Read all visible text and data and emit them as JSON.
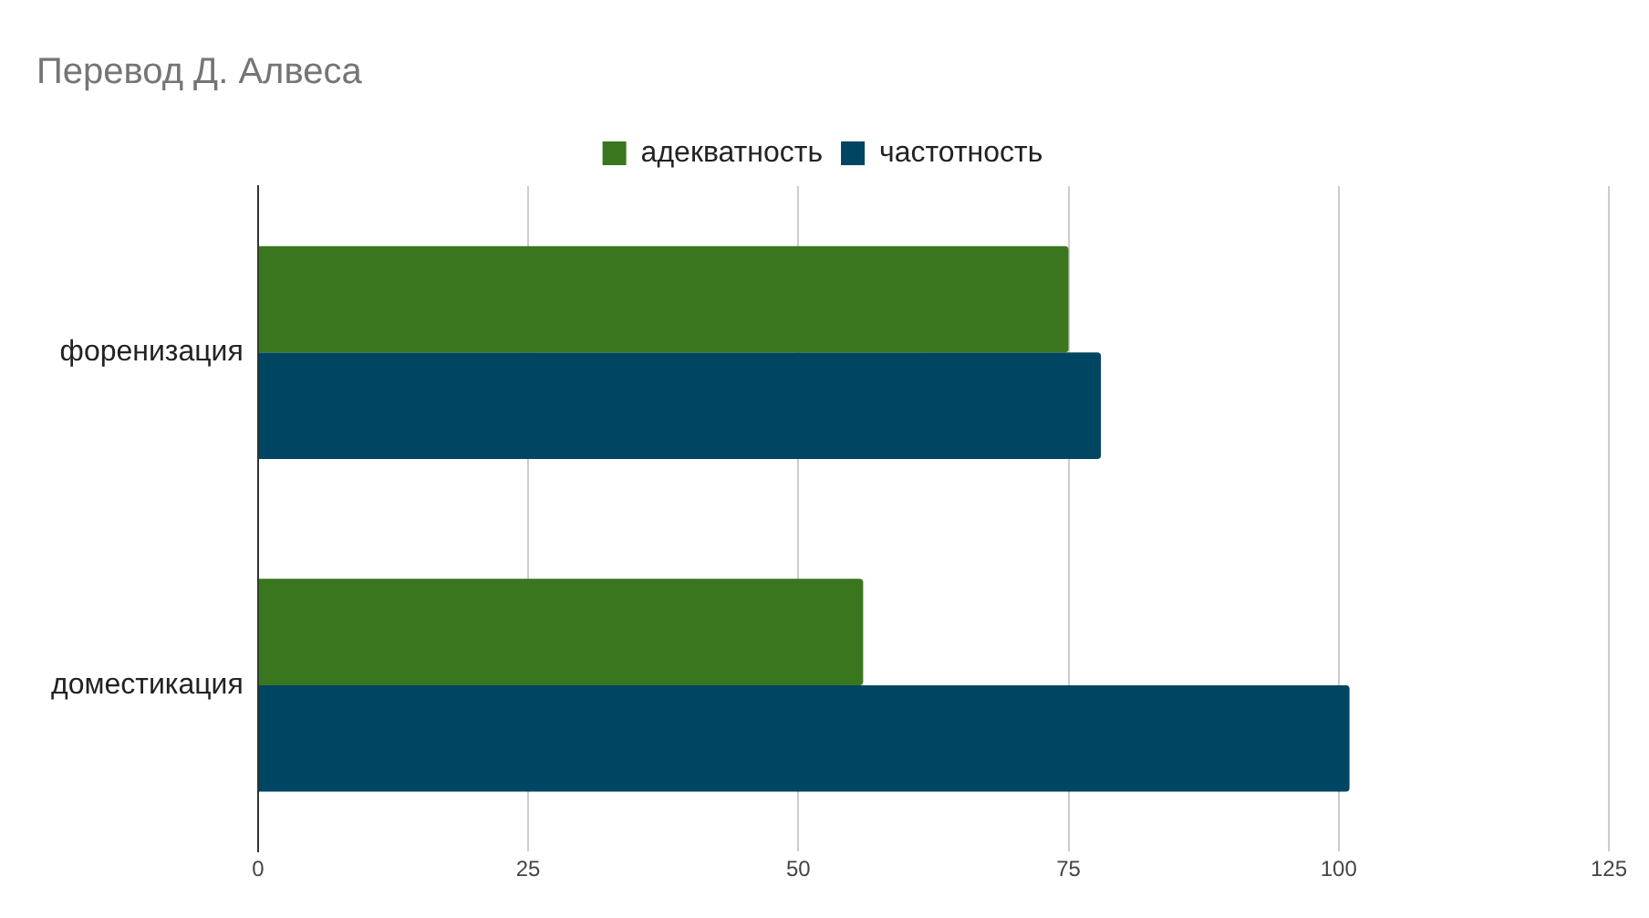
{
  "chart_data": {
    "type": "bar",
    "orientation": "horizontal",
    "title": "Перевод Д. Алвеса",
    "categories": [
      "форенизация",
      "доместикация"
    ],
    "series": [
      {
        "name": "адекватность",
        "color": "#3a761e",
        "values": [
          75,
          56
        ]
      },
      {
        "name": "частотность",
        "color": "#004561",
        "values": [
          78,
          101
        ]
      }
    ],
    "xlim": [
      0,
      125
    ],
    "xticks": [
      0,
      25,
      50,
      75,
      100,
      125
    ],
    "grid": "x",
    "legend": "top"
  }
}
